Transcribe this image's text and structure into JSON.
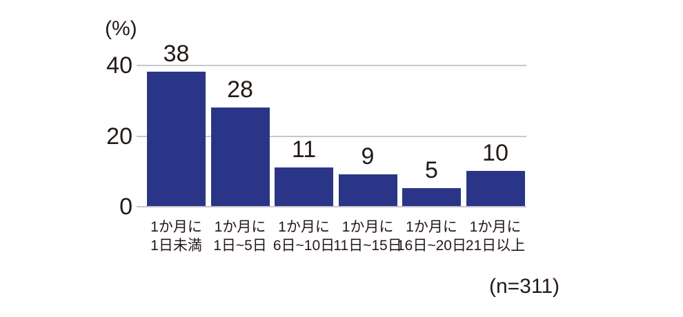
{
  "chart_data": {
    "type": "bar",
    "title": "",
    "ylabel": "(%)",
    "categories": [
      "1か月に\n1日未満",
      "1か月に\n1日~5日",
      "1か月に\n6日~10日",
      "1か月に\n11日~15日",
      "1か月に\n16日~20日",
      "1か月に\n21日以上"
    ],
    "values": [
      38,
      28,
      11,
      9,
      5,
      10
    ],
    "yticks": [
      0,
      20,
      40
    ],
    "ylim": [
      0,
      40
    ],
    "grid": "horizontal-only",
    "legend": "none",
    "value_labels_shown": true,
    "sample_note": "(n=311)",
    "colors": {
      "bar": "#2b3588",
      "gridline": "#c7c7c7",
      "text": "#231815"
    }
  }
}
